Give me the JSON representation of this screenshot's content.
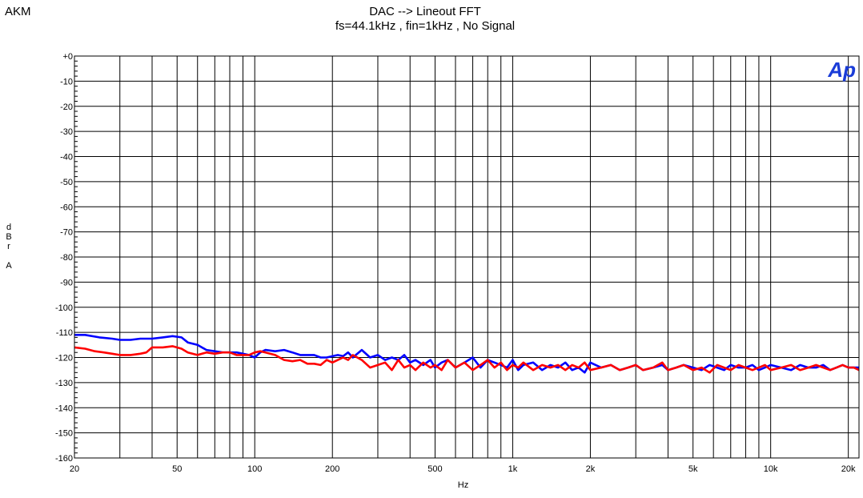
{
  "brand": "AKM",
  "chart_data": {
    "type": "line",
    "title": "DAC --> Lineout  FFT",
    "subtitle": "fs=44.1kHz , fin=1kHz , No Signal",
    "xlabel": "Hz",
    "ylabel_chars": [
      "d",
      "B",
      "r",
      "",
      "A"
    ],
    "x_scale": "log",
    "xlim": [
      20,
      22000
    ],
    "ylim": [
      -160,
      0
    ],
    "x_ticks": [
      {
        "value": 20,
        "label": "20"
      },
      {
        "value": 50,
        "label": "50"
      },
      {
        "value": 100,
        "label": "100"
      },
      {
        "value": 200,
        "label": "200"
      },
      {
        "value": 500,
        "label": "500"
      },
      {
        "value": 1000,
        "label": "1k"
      },
      {
        "value": 2000,
        "label": "2k"
      },
      {
        "value": 5000,
        "label": "5k"
      },
      {
        "value": 10000,
        "label": "10k"
      },
      {
        "value": 20000,
        "label": "20k"
      }
    ],
    "y_ticks": [
      {
        "value": 0,
        "label": "+0"
      },
      {
        "value": -10,
        "label": "-10"
      },
      {
        "value": -20,
        "label": "-20"
      },
      {
        "value": -30,
        "label": "-30"
      },
      {
        "value": -40,
        "label": "-40"
      },
      {
        "value": -50,
        "label": "-50"
      },
      {
        "value": -60,
        "label": "-60"
      },
      {
        "value": -70,
        "label": "-70"
      },
      {
        "value": -80,
        "label": "-80"
      },
      {
        "value": -90,
        "label": "-90"
      },
      {
        "value": -100,
        "label": "-100"
      },
      {
        "value": -110,
        "label": "-110"
      },
      {
        "value": -120,
        "label": "-120"
      },
      {
        "value": -130,
        "label": "-130"
      },
      {
        "value": -140,
        "label": "-140"
      },
      {
        "value": -150,
        "label": "-150"
      },
      {
        "value": -160,
        "label": "-160"
      }
    ],
    "grid": true,
    "logo_text": "Ap",
    "series": [
      {
        "color": "#0000ff",
        "x": [
          20,
          22,
          25,
          28,
          30,
          33,
          36,
          40,
          44,
          48,
          52,
          55,
          60,
          65,
          70,
          75,
          80,
          85,
          90,
          95,
          100,
          105,
          110,
          120,
          130,
          140,
          150,
          160,
          170,
          180,
          190,
          200,
          210,
          220,
          230,
          240,
          260,
          280,
          300,
          320,
          340,
          360,
          380,
          400,
          420,
          450,
          480,
          500,
          530,
          560,
          600,
          650,
          700,
          750,
          800,
          850,
          900,
          950,
          1000,
          1050,
          1100,
          1200,
          1300,
          1400,
          1500,
          1600,
          1700,
          1800,
          1900,
          2000,
          2200,
          2400,
          2600,
          2800,
          3000,
          3200,
          3500,
          3800,
          4000,
          4300,
          4600,
          5000,
          5400,
          5800,
          6200,
          6600,
          7000,
          7500,
          8000,
          8500,
          9000,
          9500,
          10000,
          11000,
          12000,
          13000,
          14000,
          15000,
          16000,
          17000,
          18000,
          19000,
          20000,
          21000,
          22000
        ],
        "y": [
          -111,
          -111,
          -112,
          -112.5,
          -113,
          -113,
          -112.5,
          -112.5,
          -112,
          -111.5,
          -112,
          -114,
          -115,
          -117,
          -117.5,
          -118,
          -118,
          -118,
          -118.5,
          -119,
          -120,
          -118,
          -117,
          -117.5,
          -117,
          -118,
          -119,
          -119,
          -119,
          -120,
          -120,
          -119.5,
          -119,
          -119.5,
          -118,
          -120,
          -117,
          -120,
          -119,
          -121,
          -120,
          -121,
          -119,
          -122,
          -121,
          -123,
          -121,
          -124,
          -122,
          -121,
          -124,
          -122,
          -120,
          -124,
          -121,
          -122,
          -123,
          -124,
          -121,
          -125,
          -123,
          -122,
          -125,
          -123,
          -124,
          -122,
          -125,
          -124,
          -126,
          -122,
          -124,
          -123,
          -125,
          -124,
          -123,
          -125,
          -124,
          -123,
          -125,
          -124,
          -123,
          -124,
          -125,
          -123,
          -124,
          -125,
          -123,
          -124,
          -124,
          -123,
          -125,
          -124,
          -123,
          -124,
          -125,
          -123,
          -124,
          -124,
          -123,
          -125,
          -124,
          -123,
          -124,
          -124,
          -124
        ]
      },
      {
        "color": "#ff0000",
        "x": [
          20,
          22,
          24,
          26,
          28,
          30,
          33,
          36,
          38,
          40,
          44,
          48,
          52,
          55,
          60,
          65,
          70,
          75,
          80,
          85,
          90,
          95,
          100,
          105,
          110,
          120,
          130,
          140,
          150,
          160,
          170,
          180,
          190,
          200,
          210,
          220,
          230,
          240,
          260,
          280,
          300,
          320,
          340,
          360,
          380,
          400,
          420,
          450,
          480,
          500,
          530,
          560,
          600,
          650,
          700,
          750,
          800,
          850,
          900,
          950,
          1000,
          1050,
          1100,
          1200,
          1300,
          1400,
          1500,
          1600,
          1700,
          1800,
          1900,
          2000,
          2200,
          2400,
          2600,
          2800,
          3000,
          3200,
          3500,
          3800,
          4000,
          4300,
          4600,
          5000,
          5400,
          5800,
          6200,
          6600,
          7000,
          7500,
          8000,
          8500,
          9000,
          9500,
          10000,
          11000,
          12000,
          13000,
          14000,
          15000,
          16000,
          17000,
          18000,
          19000,
          20000,
          21000,
          22000
        ],
        "y": [
          -116,
          -116.5,
          -117.5,
          -118,
          -118.5,
          -119,
          -119,
          -118.5,
          -118,
          -116,
          -116,
          -115.5,
          -116.5,
          -118,
          -119,
          -118,
          -118.5,
          -118,
          -118,
          -119,
          -119,
          -119,
          -118,
          -117.5,
          -118,
          -119,
          -121,
          -121.5,
          -121,
          -122.5,
          -122.5,
          -123,
          -121,
          -122,
          -121,
          -120,
          -121,
          -119,
          -121,
          -124,
          -123,
          -122,
          -125,
          -121,
          -124,
          -123,
          -125,
          -122,
          -124,
          -123,
          -125,
          -121,
          -124,
          -122,
          -125,
          -123,
          -121,
          -124,
          -122,
          -125,
          -123,
          -124,
          -122,
          -125,
          -123,
          -124,
          -123,
          -125,
          -123,
          -124,
          -122,
          -125,
          -124,
          -123,
          -125,
          -124,
          -123,
          -125,
          -124,
          -122,
          -125,
          -124,
          -123,
          -125,
          -124,
          -126,
          -123,
          -124,
          -125,
          -123,
          -124,
          -125,
          -124,
          -123,
          -125,
          -124,
          -123,
          -125,
          -124,
          -123,
          -124,
          -125,
          -124,
          -123,
          -124,
          -124,
          -125
        ]
      }
    ]
  }
}
